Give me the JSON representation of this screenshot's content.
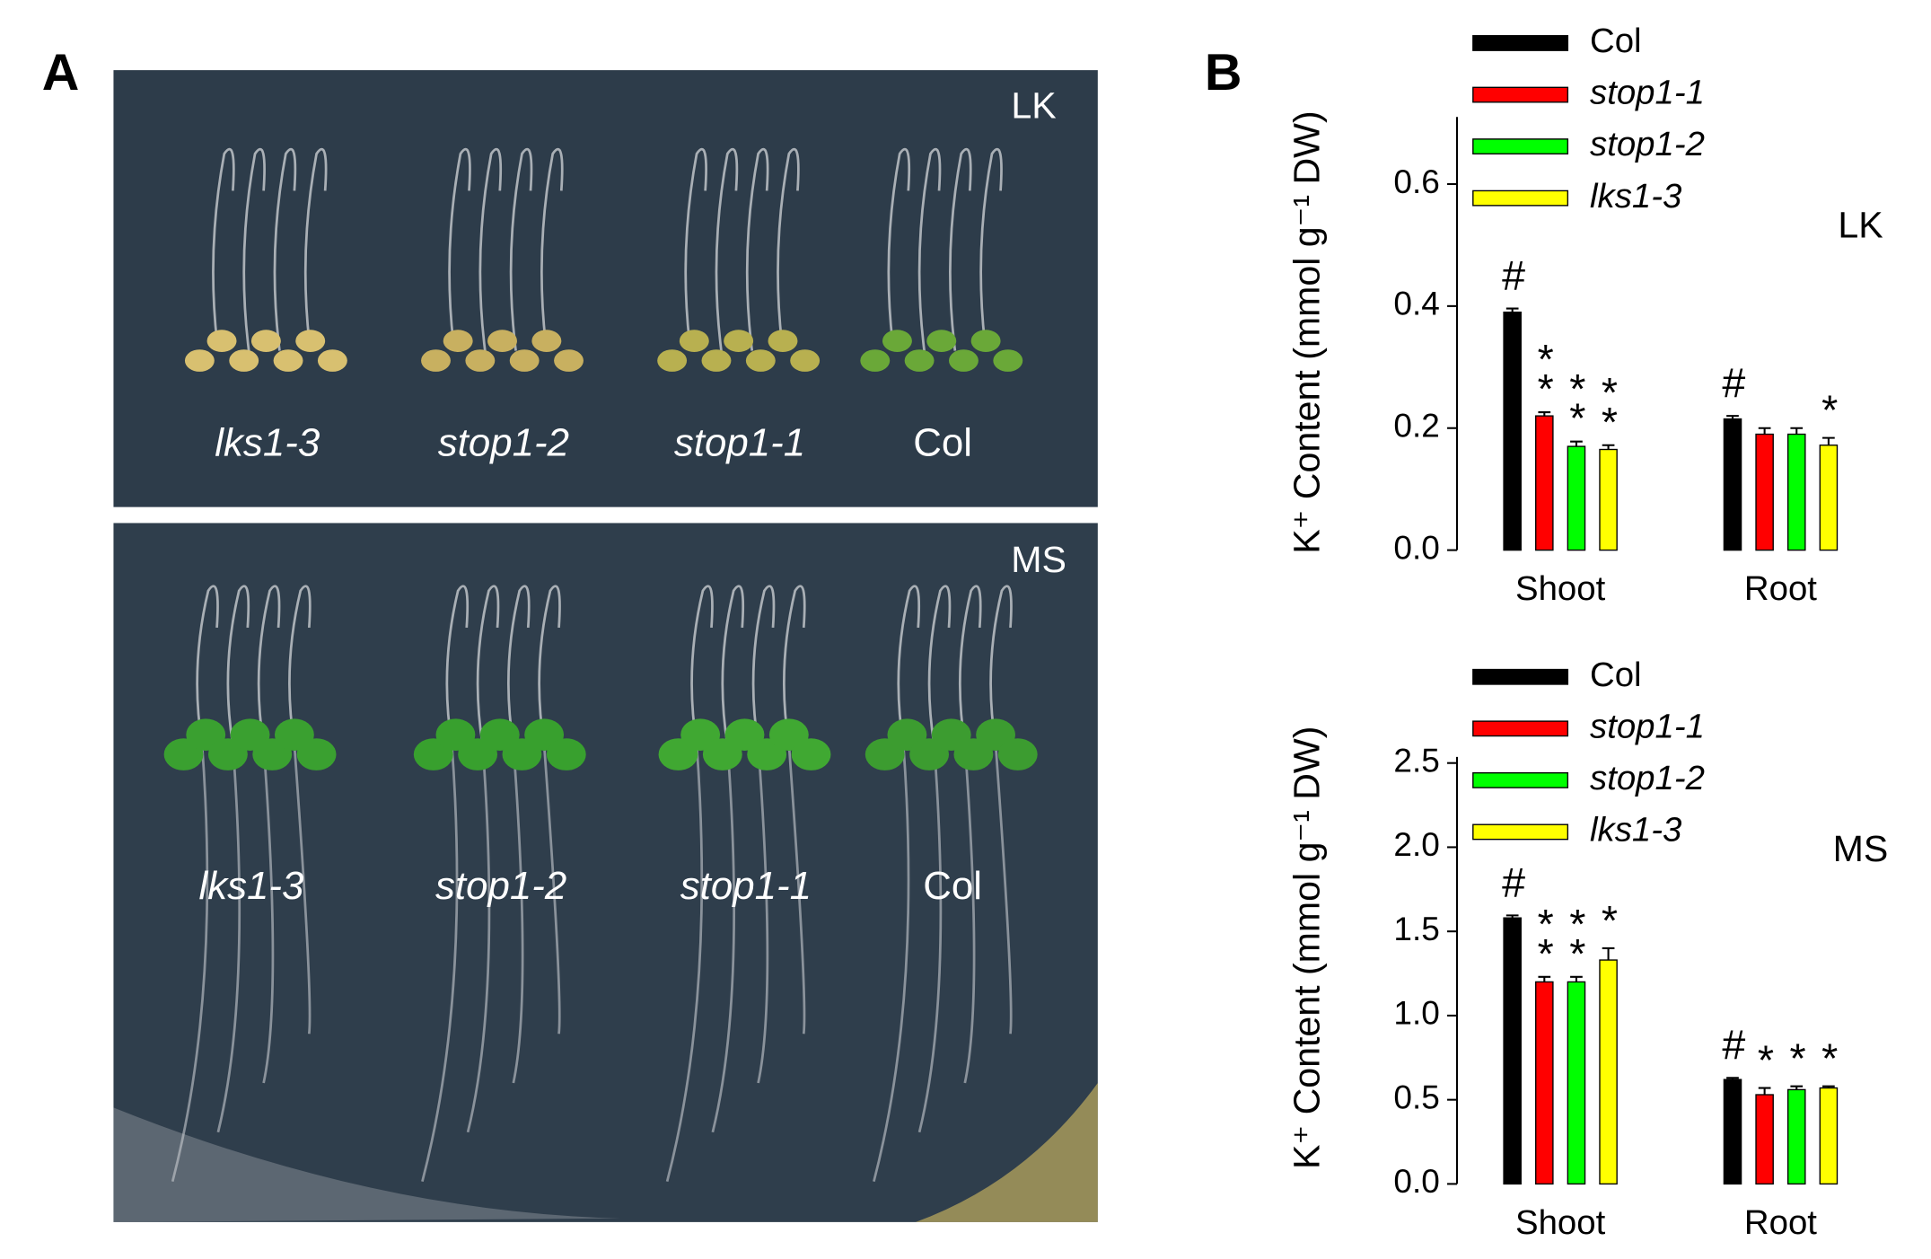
{
  "panel_a": {
    "label": "A",
    "photos": [
      {
        "condition": "LK",
        "genotypes": [
          "lks1-3",
          "stop1-2",
          "stop1-1",
          "Col"
        ]
      },
      {
        "condition": "MS",
        "genotypes": [
          "lks1-3",
          "stop1-2",
          "stop1-1",
          "Col"
        ]
      }
    ]
  },
  "panel_b": {
    "label": "B"
  },
  "chart_data": [
    {
      "type": "bar",
      "condition": "LK",
      "y_label": "K⁺ Content (mmol g⁻¹ DW)",
      "categories": [
        "Shoot",
        "Root"
      ],
      "series": [
        {
          "name": "Col",
          "color": "#000000",
          "values": [
            0.39,
            0.215
          ],
          "errors": [
            0.006,
            0.005
          ],
          "significance": [
            "#",
            "#"
          ]
        },
        {
          "name": "stop1-1",
          "color": "#ff0000",
          "values": [
            0.22,
            0.19
          ],
          "errors": [
            0.006,
            0.01
          ],
          "significance": [
            "**",
            null
          ]
        },
        {
          "name": "stop1-2",
          "color": "#00ff00",
          "values": [
            0.17,
            0.19
          ],
          "errors": [
            0.008,
            0.01
          ],
          "significance": [
            "**",
            null
          ]
        },
        {
          "name": "lks1-3",
          "color": "#ffff00",
          "values": [
            0.165,
            0.172
          ],
          "errors": [
            0.007,
            0.012
          ],
          "significance": [
            "**",
            "*"
          ]
        }
      ],
      "ylim": [
        0,
        0.7
      ],
      "yticks": [
        {
          "value": 0,
          "label": "0.0"
        },
        {
          "value": 0.2,
          "label": "0.2"
        },
        {
          "value": 0.4,
          "label": "0.4"
        },
        {
          "value": 0.6,
          "label": "0.6"
        }
      ]
    },
    {
      "type": "bar",
      "condition": "MS",
      "y_label": "K⁺ Content (mmol g⁻¹ DW)",
      "categories": [
        "Shoot",
        "Root"
      ],
      "series": [
        {
          "name": "Col",
          "color": "#000000",
          "values": [
            1.58,
            0.62
          ],
          "errors": [
            0.015,
            0.01
          ],
          "significance": [
            "#",
            "#"
          ]
        },
        {
          "name": "stop1-1",
          "color": "#ff0000",
          "values": [
            1.2,
            0.53
          ],
          "errors": [
            0.03,
            0.04
          ],
          "significance": [
            "**",
            "*"
          ]
        },
        {
          "name": "stop1-2",
          "color": "#00ff00",
          "values": [
            1.2,
            0.56
          ],
          "errors": [
            0.03,
            0.02
          ],
          "significance": [
            "**",
            "*"
          ]
        },
        {
          "name": "lks1-3",
          "color": "#ffff00",
          "values": [
            1.33,
            0.57
          ],
          "errors": [
            0.07,
            0.01
          ],
          "significance": [
            "*",
            "*"
          ]
        }
      ],
      "ylim": [
        0,
        2.5
      ],
      "yticks": [
        {
          "value": 0,
          "label": "0.0"
        },
        {
          "value": 0.5,
          "label": "0.5"
        },
        {
          "value": 1,
          "label": "1.0"
        },
        {
          "value": 1.5,
          "label": "1.5"
        },
        {
          "value": 2,
          "label": "2.0"
        },
        {
          "value": 2.5,
          "label": "2.5"
        }
      ]
    }
  ]
}
